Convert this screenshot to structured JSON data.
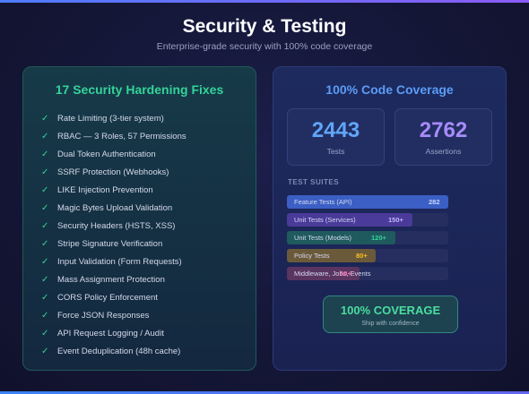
{
  "header": {
    "title": "Security & Testing",
    "subtitle": "Enterprise-grade security with 100% code coverage"
  },
  "security": {
    "heading": "17 Security Hardening Fixes",
    "check_symbol": "✓",
    "items": [
      "Rate Limiting (3-tier system)",
      "RBAC — 3 Roles, 57 Permissions",
      "Dual Token Authentication",
      "SSRF Protection (Webhooks)",
      "LIKE Injection Prevention",
      "Magic Bytes Upload Validation",
      "Security Headers (HSTS, XSS)",
      "Stripe Signature Verification",
      "Input Validation (Form Requests)",
      "Mass Assignment Protection",
      "CORS Policy Enforcement",
      "Force JSON Responses",
      "API Request Logging / Audit",
      "Event Deduplication (48h cache)"
    ]
  },
  "coverage": {
    "heading": "100% Code Coverage",
    "stats": {
      "tests": {
        "value": "2443",
        "label": "Tests"
      },
      "assertions": {
        "value": "2762",
        "label": "Assertions"
      }
    },
    "suites_heading": "TEST SUITES",
    "suites": [
      {
        "label": "Feature Tests (API)",
        "count": "282",
        "fill": 1.0,
        "fill_color": "#3b5fc4",
        "count_color": "#c7d6ff"
      },
      {
        "label": "Unit Tests (Services)",
        "count": "150+",
        "fill": 0.78,
        "fill_color": "#4a3a9a",
        "count_color": "#c4b5fd"
      },
      {
        "label": "Unit Tests (Models)",
        "count": "120+",
        "fill": 0.67,
        "fill_color": "#1f5a5e",
        "count_color": "#34d399"
      },
      {
        "label": "Policy Tests",
        "count": "80+",
        "fill": 0.55,
        "fill_color": "#6b5a3a",
        "count_color": "#fbbf24"
      },
      {
        "label": "Middleware, Jobs, Events",
        "count": "60+",
        "fill": 0.45,
        "fill_color": "#5a3560",
        "count_color": "#f472b6"
      }
    ],
    "badge": {
      "title": "100% COVERAGE",
      "subtitle": "Ship with confidence"
    }
  },
  "colors": {
    "accent_green": "#34d399",
    "accent_blue": "#5b9cf6",
    "accent_purple": "#a78bfa"
  }
}
